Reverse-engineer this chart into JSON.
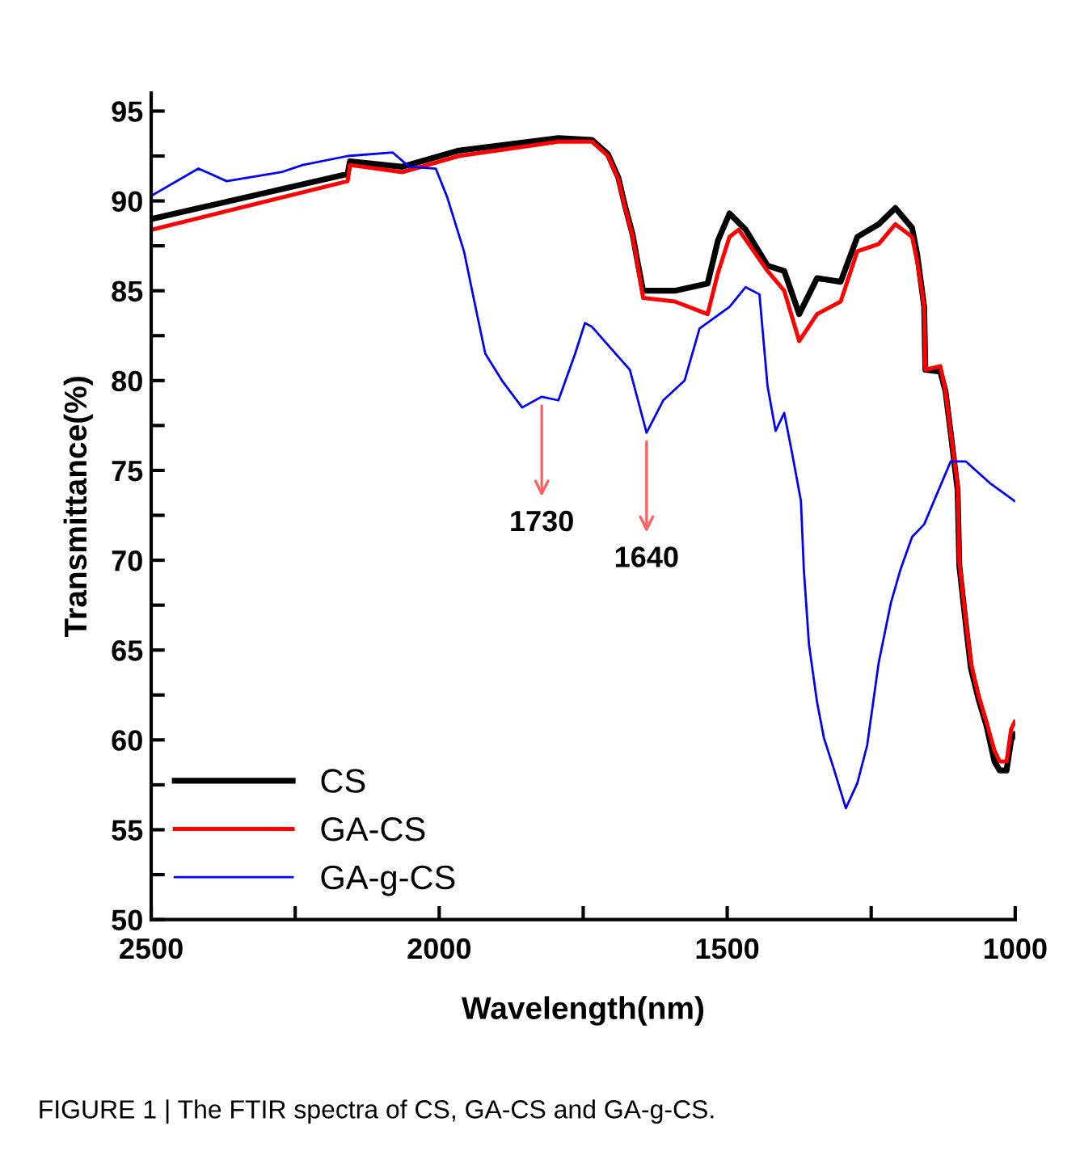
{
  "chart_data": {
    "type": "line",
    "xlabel": "Wavelength(nm)",
    "ylabel": "Transmittance(%)",
    "xlim": [
      2500,
      1000
    ],
    "ylim": [
      50,
      96
    ],
    "xticks": [
      2500,
      {
        "value": 2250,
        "label": null
      },
      2000,
      {
        "value": 1750,
        "label": null
      },
      1500,
      {
        "value": 1250,
        "label": null
      },
      1000
    ],
    "yticks": [
      50,
      {
        "value": 52.5,
        "label": null
      },
      55,
      {
        "value": 57.5,
        "label": null
      },
      60,
      {
        "value": 62.5,
        "label": null
      },
      65,
      {
        "value": 67.5,
        "label": null
      },
      70,
      {
        "value": 72.5,
        "label": null
      },
      75,
      {
        "value": 77.5,
        "label": null
      },
      80,
      {
        "value": 82.5,
        "label": null
      },
      85,
      {
        "value": 87.5,
        "label": null
      },
      90,
      {
        "value": 92.5,
        "label": null
      },
      95
    ],
    "grid": false,
    "legend": "bottom left",
    "marker": "none",
    "line_style": "solid",
    "series": [
      {
        "name": "CS",
        "color": "#000000",
        "x": [
          2499,
          2159,
          2155,
          2064,
          1966,
          1793,
          1735,
          1707,
          1689,
          1678,
          1664,
          1655,
          1646,
          1591,
          1534,
          1516,
          1496,
          1468,
          1430,
          1401,
          1375,
          1344,
          1303,
          1274,
          1237,
          1208,
          1179,
          1170,
          1158,
          1156,
          1130,
          1121,
          1112,
          1100,
          1097,
          1086,
          1077,
          1064,
          1050,
          1036,
          1027,
          1015,
          1007,
          1001
        ],
        "values": [
          89.0,
          91.5,
          92.2,
          91.9,
          92.8,
          93.5,
          93.4,
          92.6,
          91.3,
          89.8,
          88.1,
          86.5,
          85.0,
          85.0,
          85.4,
          87.8,
          89.3,
          88.4,
          86.4,
          86.1,
          83.7,
          85.7,
          85.5,
          88.0,
          88.7,
          89.6,
          88.5,
          87.0,
          84.1,
          80.6,
          80.5,
          79.4,
          77.1,
          73.9,
          69.7,
          66.5,
          64.0,
          62.3,
          60.8,
          58.8,
          58.3,
          58.3,
          60.0,
          60.3
        ]
      },
      {
        "name": "GA-CS",
        "color": "#ff0000",
        "x": [
          2499,
          2159,
          2155,
          2064,
          1966,
          1793,
          1735,
          1707,
          1689,
          1678,
          1664,
          1655,
          1646,
          1591,
          1534,
          1516,
          1496,
          1480,
          1430,
          1401,
          1375,
          1344,
          1303,
          1274,
          1237,
          1208,
          1179,
          1170,
          1158,
          1156,
          1130,
          1121,
          1112,
          1100,
          1097,
          1086,
          1077,
          1064,
          1050,
          1036,
          1027,
          1015,
          1007,
          1001
        ],
        "values": [
          88.4,
          91.1,
          92.0,
          91.6,
          92.5,
          93.3,
          93.3,
          92.5,
          91.2,
          89.7,
          88.0,
          86.3,
          84.6,
          84.4,
          83.7,
          86.0,
          88.0,
          88.4,
          86.1,
          85.0,
          82.2,
          83.7,
          84.4,
          87.2,
          87.6,
          88.7,
          88.0,
          86.6,
          84.1,
          80.6,
          80.8,
          79.4,
          77.1,
          74.2,
          69.9,
          66.7,
          64.3,
          62.5,
          61.0,
          59.4,
          58.8,
          58.8,
          60.6,
          61.0
        ]
      },
      {
        "name": "GA-g-CS",
        "color": "#0000ff",
        "x": [
          2499,
          2418,
          2369,
          2274,
          2237,
          2159,
          2081,
          2052,
          2006,
          1986,
          1957,
          1937,
          1920,
          1891,
          1856,
          1822,
          1793,
          1764,
          1747,
          1735,
          1669,
          1640,
          1611,
          1574,
          1548,
          1496,
          1468,
          1444,
          1430,
          1416,
          1401,
          1387,
          1372,
          1367,
          1358,
          1344,
          1332,
          1315,
          1294,
          1274,
          1257,
          1237,
          1216,
          1199,
          1179,
          1158,
          1141,
          1112,
          1086,
          1044,
          1001
        ],
        "values": [
          90.3,
          91.8,
          91.1,
          91.6,
          92.0,
          92.5,
          92.7,
          91.9,
          91.8,
          90.2,
          87.2,
          84.1,
          81.5,
          80.0,
          78.5,
          79.1,
          78.9,
          81.5,
          83.2,
          83.0,
          80.6,
          77.1,
          78.9,
          80.0,
          82.9,
          84.1,
          85.2,
          84.8,
          79.7,
          77.2,
          78.2,
          75.9,
          73.3,
          69.5,
          65.3,
          62.1,
          60.1,
          58.4,
          56.2,
          57.6,
          59.7,
          64.3,
          67.6,
          69.5,
          71.3,
          72.0,
          73.3,
          75.5,
          75.5,
          74.3,
          73.3
        ]
      }
    ],
    "annotations": [
      {
        "text": "1730",
        "x": 1822,
        "y": 79.1
      },
      {
        "text": "1640",
        "x": 1640,
        "y": 77.1
      },
      "FIGURE 1 | The FTIR spectra of CS, GA-CS and GA-g-CS."
    ]
  }
}
